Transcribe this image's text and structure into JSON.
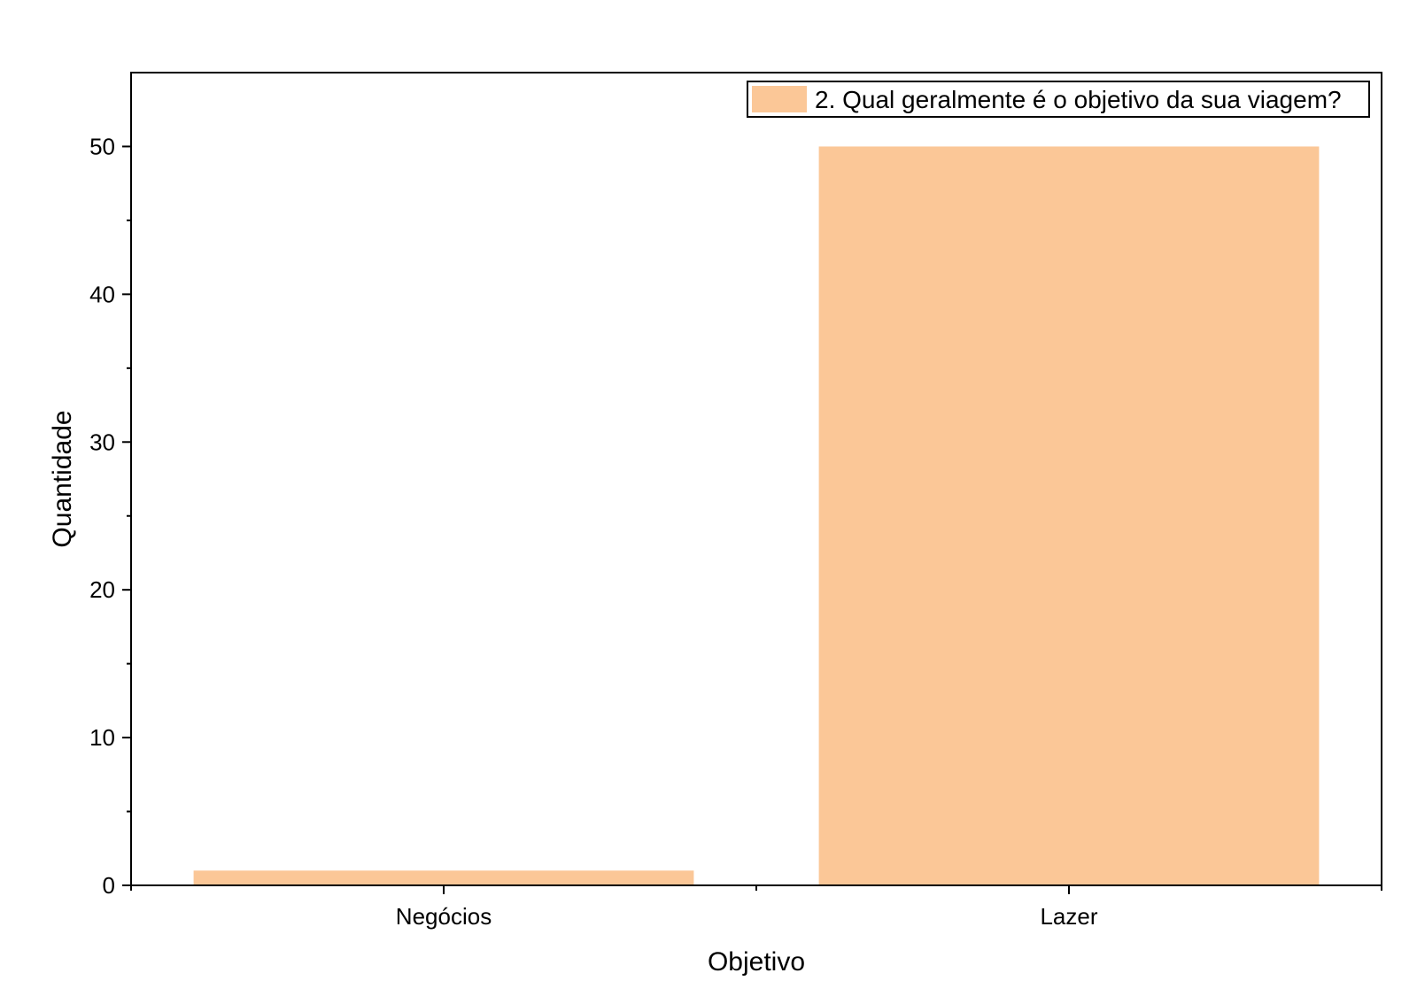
{
  "chart_data": {
    "type": "bar",
    "categories": [
      "Negócios",
      "Lazer"
    ],
    "series": [
      {
        "name": "2. Qual geralmente é o objetivo da sua viagem?",
        "values": [
          1,
          50
        ],
        "color": "#fbc797"
      }
    ],
    "xlabel": "Objetivo",
    "ylabel": "Quantidade",
    "ylim": [
      0,
      55
    ],
    "yticks": [
      0,
      10,
      20,
      30,
      40,
      50
    ],
    "ytick_labels": [
      "0",
      "10",
      "20",
      "30",
      "40",
      "50"
    ],
    "grid": false,
    "legend_position": "top-right"
  }
}
